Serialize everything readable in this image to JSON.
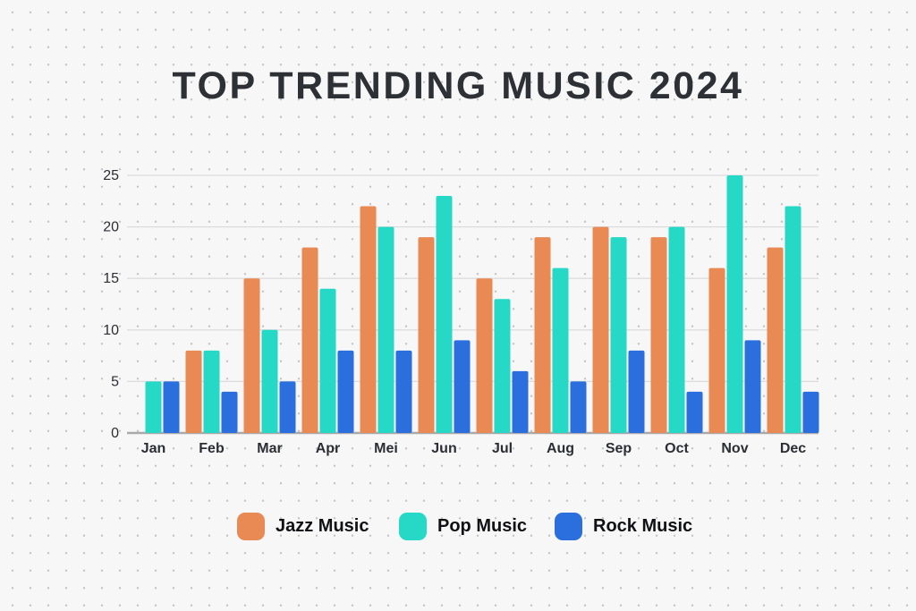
{
  "title": "TOP TRENDING MUSIC 2024",
  "colors": {
    "background": "#f7f7f8",
    "dot_grid": "#c5c5c7",
    "title_text": "#2d3035",
    "axis_text": "#2b2e33",
    "gridline": "#dcdcdc",
    "baseline": "#a9a9a9"
  },
  "chart_data": {
    "type": "bar",
    "title": "TOP TRENDING MUSIC 2024",
    "categories": [
      "Jan",
      "Feb",
      "Mar",
      "Apr",
      "Mei",
      "Jun",
      "Jul",
      "Aug",
      "Sep",
      "Oct",
      "Nov",
      "Dec"
    ],
    "series": [
      {
        "name": "Jazz Music",
        "color": "#e98a55",
        "values": [
          0,
          8,
          15,
          18,
          22,
          19,
          15,
          19,
          20,
          19,
          16,
          18
        ]
      },
      {
        "name": "Pop Music",
        "color": "#26d8c6",
        "values": [
          5,
          8,
          10,
          14,
          20,
          23,
          13,
          16,
          19,
          20,
          25,
          22
        ]
      },
      {
        "name": "Rock Music",
        "color": "#2b6fdf",
        "values": [
          5,
          4,
          5,
          8,
          8,
          9,
          6,
          5,
          8,
          4,
          9,
          4
        ]
      }
    ],
    "yticks": [
      0,
      5,
      10,
      15,
      20,
      25
    ],
    "ylim": [
      0,
      25
    ],
    "grid": "horizontal",
    "legend_position": "bottom"
  }
}
